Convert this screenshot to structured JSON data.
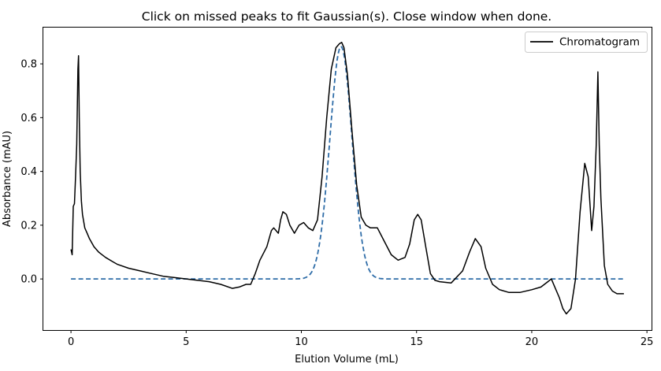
{
  "window": {
    "title": "Click on missed peaks to fit Gaussian(s). Close window when done."
  },
  "chart_data": {
    "type": "line",
    "title": "Click on missed peaks to fit Gaussian(s). Close window when done.",
    "xlabel": "Elution Volume (mL)",
    "ylabel": "Absorbance (mAU)",
    "xlim": [
      -1.2,
      25.2
    ],
    "ylim": [
      -0.19,
      0.935
    ],
    "xticks": [
      0,
      5,
      10,
      15,
      20,
      25
    ],
    "yticks": [
      0.0,
      0.2,
      0.4,
      0.6,
      0.8
    ],
    "xtick_labels": [
      "0",
      "5",
      "10",
      "15",
      "20",
      "25"
    ],
    "ytick_labels": [
      "0.0",
      "0.2",
      "0.4",
      "0.6",
      "0.8"
    ],
    "grid": false,
    "legend": {
      "position": "top-right",
      "entries": [
        "Chromatogram"
      ]
    },
    "series": [
      {
        "name": "Chromatogram",
        "style": "solid",
        "color": "#000000",
        "x": [
          0.0,
          0.05,
          0.1,
          0.15,
          0.2,
          0.25,
          0.3,
          0.33,
          0.36,
          0.4,
          0.45,
          0.5,
          0.6,
          0.7,
          0.8,
          1.0,
          1.2,
          1.5,
          1.8,
          2.0,
          2.5,
          3.0,
          3.5,
          4.0,
          4.5,
          5.0,
          5.5,
          6.0,
          6.5,
          7.0,
          7.3,
          7.6,
          7.8,
          8.0,
          8.2,
          8.5,
          8.7,
          8.8,
          9.0,
          9.1,
          9.2,
          9.35,
          9.5,
          9.7,
          9.9,
          10.1,
          10.3,
          10.5,
          10.7,
          10.9,
          11.1,
          11.3,
          11.5,
          11.65,
          11.75,
          11.85,
          12.0,
          12.2,
          12.4,
          12.6,
          12.8,
          13.0,
          13.3,
          13.6,
          13.9,
          14.2,
          14.5,
          14.7,
          14.9,
          15.05,
          15.2,
          15.4,
          15.6,
          15.8,
          16.0,
          16.5,
          17.0,
          17.3,
          17.55,
          17.8,
          18.0,
          18.3,
          18.6,
          19.0,
          19.5,
          20.0,
          20.4,
          20.7,
          20.85,
          21.0,
          21.2,
          21.35,
          21.5,
          21.7,
          21.9,
          22.1,
          22.3,
          22.45,
          22.6,
          22.7,
          22.8,
          22.87,
          22.93,
          23.0,
          23.15,
          23.3,
          23.5,
          23.7,
          23.9,
          24.0
        ],
        "y": [
          0.11,
          0.09,
          0.27,
          0.28,
          0.38,
          0.5,
          0.78,
          0.83,
          0.6,
          0.4,
          0.29,
          0.24,
          0.19,
          0.17,
          0.15,
          0.12,
          0.1,
          0.08,
          0.065,
          0.055,
          0.04,
          0.03,
          0.02,
          0.01,
          0.005,
          0.0,
          -0.005,
          -0.01,
          -0.02,
          -0.035,
          -0.03,
          -0.02,
          -0.02,
          0.02,
          0.07,
          0.12,
          0.18,
          0.19,
          0.17,
          0.22,
          0.25,
          0.24,
          0.2,
          0.17,
          0.2,
          0.21,
          0.19,
          0.18,
          0.22,
          0.38,
          0.6,
          0.78,
          0.86,
          0.875,
          0.88,
          0.86,
          0.76,
          0.55,
          0.35,
          0.23,
          0.2,
          0.19,
          0.19,
          0.14,
          0.09,
          0.07,
          0.08,
          0.13,
          0.22,
          0.24,
          0.22,
          0.12,
          0.02,
          -0.005,
          -0.01,
          -0.015,
          0.03,
          0.1,
          0.15,
          0.12,
          0.04,
          -0.02,
          -0.04,
          -0.05,
          -0.05,
          -0.04,
          -0.03,
          -0.01,
          0.0,
          -0.03,
          -0.07,
          -0.11,
          -0.13,
          -0.11,
          0.0,
          0.25,
          0.43,
          0.38,
          0.18,
          0.27,
          0.5,
          0.77,
          0.5,
          0.3,
          0.05,
          -0.02,
          -0.045,
          -0.055,
          -0.055,
          -0.055
        ]
      },
      {
        "name": "Gaussian fit",
        "style": "dashed",
        "color": "#2f6da8",
        "gaussian": {
          "amplitude": 0.865,
          "center": 11.72,
          "sigma": 0.48
        },
        "x_range": [
          0,
          24
        ]
      }
    ]
  }
}
